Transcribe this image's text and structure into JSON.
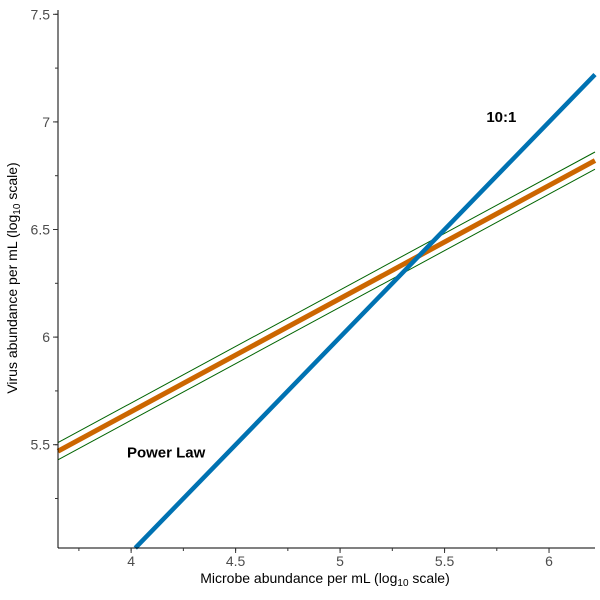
{
  "chart_data": {
    "type": "line",
    "title": "",
    "xlabel": {
      "pre": "Microbe abundance per mL (log",
      "sub": "10",
      "post": " scale)"
    },
    "ylabel": {
      "pre": "Virus abundance per mL (log",
      "sub": "10",
      "post": " scale)"
    },
    "xlim": [
      3.65,
      6.22
    ],
    "ylim": [
      5.02,
      7.52
    ],
    "xticks": [
      4,
      4.5,
      5,
      5.5,
      6
    ],
    "xtick_labels": [
      "4",
      "4.5",
      "5",
      "5.5",
      "6"
    ],
    "yticks": [
      5.5,
      6,
      6.5,
      7,
      7.5
    ],
    "ytick_labels": [
      "5.5",
      "6",
      "6.5",
      "7",
      "7.5"
    ],
    "grid": false,
    "legend": "none",
    "series": [
      {
        "id": "power-law",
        "color": "#cc6600",
        "x": [
          3.65,
          6.22
        ],
        "y": [
          5.47,
          6.82
        ]
      },
      {
        "id": "power-law-ci-upper",
        "color": "#006400",
        "x": [
          3.65,
          6.22
        ],
        "y": [
          5.51,
          6.86
        ]
      },
      {
        "id": "power-law-ci-lower",
        "color": "#006400",
        "x": [
          3.65,
          6.22
        ],
        "y": [
          5.43,
          6.78
        ]
      },
      {
        "id": "ratio-10-to-1",
        "color": "#0072b2",
        "x": [
          4.02,
          6.22
        ],
        "y": [
          5.02,
          7.22
        ]
      }
    ],
    "annotations": [
      {
        "text": "10:1",
        "x": 5.7,
        "y": 7.0
      },
      {
        "text": "Power Law",
        "x": 3.98,
        "y": 5.44
      }
    ]
  }
}
